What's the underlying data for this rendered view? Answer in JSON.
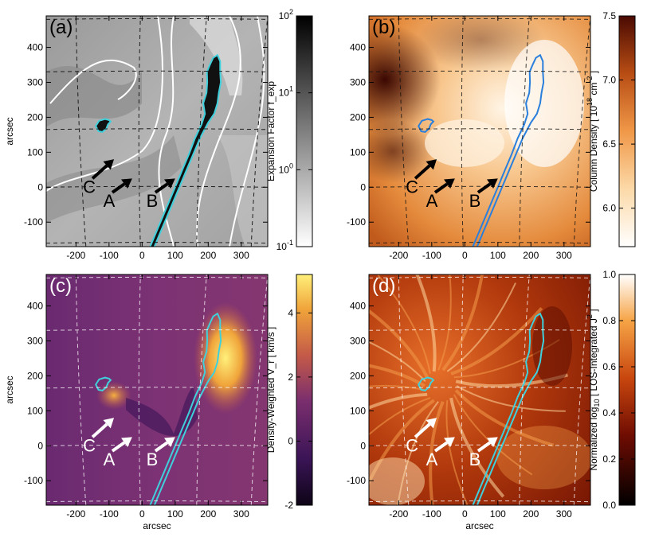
{
  "chart_data": [
    {
      "type": "heatmap",
      "panel_label": "(a)",
      "xlabel": "",
      "ylabel": "arcsec",
      "x_ticks": [
        "-200",
        "-100",
        "0",
        "100",
        "200",
        "300"
      ],
      "y_ticks": [
        "-100",
        "0",
        "100",
        "200",
        "300",
        "400"
      ],
      "xlim": [
        -290,
        380
      ],
      "ylim": [
        -170,
        490
      ],
      "colorbar": {
        "label": "Expansion Factor  f_exp",
        "scale": "log",
        "range": [
          0.1,
          100
        ],
        "ticks": [
          {
            "base": "10",
            "exp": "-1",
            "value": 0.1
          },
          {
            "base": "10",
            "exp": "0",
            "value": 1
          },
          {
            "base": "10",
            "exp": "1",
            "value": 10
          },
          {
            "base": "10",
            "exp": "2",
            "value": 100
          }
        ],
        "colormap": "white-to-black"
      },
      "contour_color": "#3fd0dc",
      "arrows": [
        {
          "label": "A",
          "tail": [
            -90,
            -15
          ],
          "head": [
            -30,
            25
          ]
        },
        {
          "label": "B",
          "tail": [
            40,
            -15
          ],
          "head": [
            100,
            25
          ]
        },
        {
          "label": "C",
          "tail": [
            -150,
            25
          ],
          "head": [
            -85,
            80
          ]
        }
      ]
    },
    {
      "type": "heatmap",
      "panel_label": "(b)",
      "xlabel": "",
      "ylabel": "",
      "x_ticks": [
        "-200",
        "-100",
        "0",
        "100",
        "200",
        "300"
      ],
      "y_ticks": [
        "-100",
        "0",
        "100",
        "200",
        "300",
        "400"
      ],
      "xlim": [
        -290,
        380
      ],
      "ylim": [
        -170,
        490
      ],
      "colorbar": {
        "label": "Column Density",
        "unit": "[ 10",
        "unit_sup": "18",
        "unit_tail": " cm",
        "unit_sup2": "-2",
        "unit_end": " ]",
        "scale": "linear",
        "range": [
          5.7,
          7.5
        ],
        "ticks": [
          {
            "label": "6.0",
            "value": 6.0
          },
          {
            "label": "6.5",
            "value": 6.5
          },
          {
            "label": "7.0",
            "value": 7.0
          },
          {
            "label": "7.5",
            "value": 7.5
          }
        ],
        "colormap": "heat-to-white"
      },
      "contour_color": "#2a7fdc",
      "arrows": [
        {
          "label": "A",
          "tail": [
            -90,
            -15
          ],
          "head": [
            -30,
            25
          ]
        },
        {
          "label": "B",
          "tail": [
            40,
            -15
          ],
          "head": [
            100,
            25
          ]
        },
        {
          "label": "C",
          "tail": [
            -150,
            25
          ],
          "head": [
            -85,
            80
          ]
        }
      ]
    },
    {
      "type": "heatmap",
      "panel_label": "(c)",
      "xlabel": "arcsec",
      "ylabel": "arcsec",
      "x_ticks": [
        "-200",
        "-100",
        "0",
        "100",
        "200",
        "300"
      ],
      "y_ticks": [
        "-100",
        "0",
        "100",
        "200",
        "300",
        "400"
      ],
      "xlim": [
        -290,
        380
      ],
      "ylim": [
        -170,
        490
      ],
      "colorbar": {
        "label": "Density-Weighted  V_r   [ km/s ]",
        "scale": "linear",
        "range": [
          -2,
          5.2
        ],
        "ticks": [
          {
            "label": "-2",
            "value": -2
          },
          {
            "label": "0",
            "value": 0
          },
          {
            "label": "2",
            "value": 2
          },
          {
            "label": "4",
            "value": 4
          }
        ],
        "colormap": "dark-violet-to-yellow"
      },
      "contour_color": "#3fd0dc",
      "arrows": [
        {
          "label": "A",
          "tail": [
            -90,
            -15
          ],
          "head": [
            -30,
            25
          ]
        },
        {
          "label": "B",
          "tail": [
            40,
            -15
          ],
          "head": [
            100,
            25
          ]
        },
        {
          "label": "C",
          "tail": [
            -150,
            25
          ],
          "head": [
            -85,
            80
          ]
        }
      ]
    },
    {
      "type": "heatmap",
      "panel_label": "(d)",
      "xlabel": "arcsec",
      "ylabel": "",
      "x_ticks": [
        "-200",
        "-100",
        "0",
        "100",
        "200",
        "300"
      ],
      "y_ticks": [
        "-100",
        "0",
        "100",
        "200",
        "300",
        "400"
      ],
      "xlim": [
        -290,
        380
      ],
      "ylim": [
        -170,
        490
      ],
      "colorbar": {
        "label": "Normalized log",
        "label_sub": "10",
        "label_mid": " [ LOS-Integrated  J",
        "label_sup": "2",
        "label_end": " ]",
        "scale": "linear",
        "range": [
          0,
          1
        ],
        "ticks": [
          {
            "label": "0.0",
            "value": 0.0
          },
          {
            "label": "0.2",
            "value": 0.2
          },
          {
            "label": "0.4",
            "value": 0.4
          },
          {
            "label": "0.6",
            "value": 0.6
          },
          {
            "label": "0.8",
            "value": 0.8
          },
          {
            "label": "1.0",
            "value": 1.0
          }
        ],
        "colormap": "black-red-to-white"
      },
      "contour_color": "#3fd0dc",
      "arrows": [
        {
          "label": "A",
          "tail": [
            -90,
            -15
          ],
          "head": [
            -30,
            25
          ]
        },
        {
          "label": "B",
          "tail": [
            40,
            -15
          ],
          "head": [
            100,
            25
          ]
        },
        {
          "label": "C",
          "tail": [
            -150,
            25
          ],
          "head": [
            -85,
            80
          ]
        }
      ]
    }
  ]
}
